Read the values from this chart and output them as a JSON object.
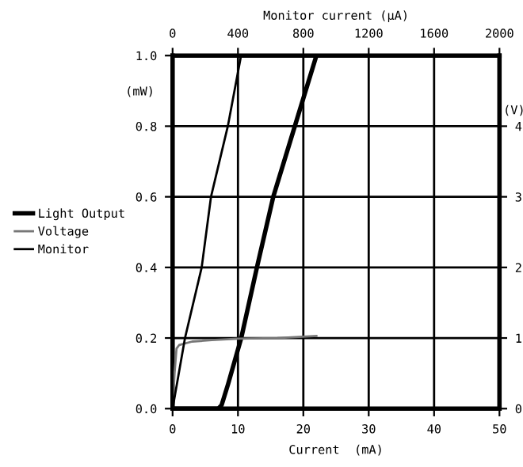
{
  "chart_data": {
    "type": "line",
    "xlabel": "Current  (mA)",
    "x2label": "Monitor current (µA)",
    "ylabel": "(mW)",
    "y2label": "(V)",
    "xlim": [
      0,
      50
    ],
    "xticks": [
      0,
      10,
      20,
      30,
      40,
      50
    ],
    "x2lim": [
      0,
      2000
    ],
    "x2ticks": [
      0,
      400,
      800,
      1200,
      1600,
      2000
    ],
    "ylim": [
      0,
      1.0
    ],
    "yticks": [
      {
        "value": 0,
        "label": "0.0"
      },
      {
        "value": 0.2,
        "label": "0.2"
      },
      {
        "value": 0.4,
        "label": "0.4"
      },
      {
        "value": 0.6,
        "label": "0.6"
      },
      {
        "value": 0.8,
        "label": "0.8"
      },
      {
        "value": 1.0,
        "label": "1.0"
      }
    ],
    "y2lim": [
      0,
      5
    ],
    "y2ticks": [
      0,
      1,
      2,
      3,
      4
    ],
    "grid": true,
    "legend": "left",
    "marker": "none",
    "line_style": "solid",
    "series": [
      {
        "name": "Light Output",
        "color": "#000000",
        "x": [
          0,
          7,
          7.5,
          8.5,
          10.5,
          12.9,
          15.4,
          18.7,
          22
        ],
        "values": [
          0,
          0,
          0.01,
          0.07,
          0.2,
          0.4,
          0.6,
          0.8,
          1.0
        ]
      },
      {
        "name": "Voltage",
        "color": "#777777",
        "axis": "y2",
        "x": [
          0,
          0.3,
          0.6,
          1,
          3,
          6,
          10,
          16,
          22
        ],
        "values": [
          0,
          0.5,
          0.85,
          0.9,
          0.95,
          0.97,
          0.99,
          1.0,
          1.03
        ]
      },
      {
        "name": "Monitor",
        "color": "#000000",
        "axis": "x2",
        "x": [
          0,
          76,
          178,
          235,
          338,
          419
        ],
        "values": [
          0,
          0.2,
          0.4,
          0.6,
          0.8,
          1.0
        ]
      }
    ]
  }
}
